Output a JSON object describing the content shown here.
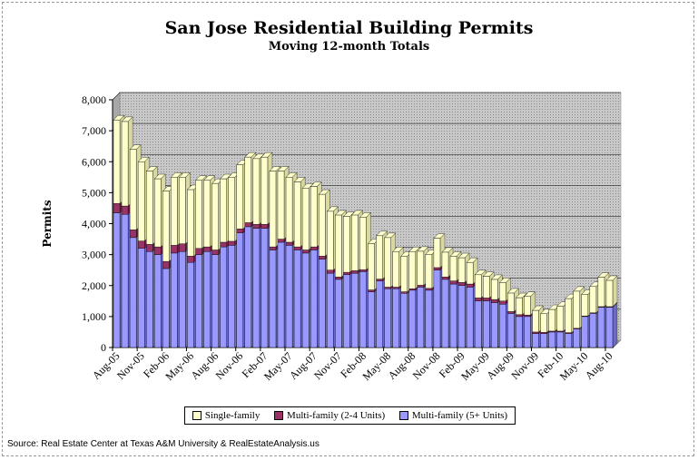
{
  "title": "San Jose Residential Building Permits",
  "subtitle": "Moving 12-month Totals",
  "source": "Source: Real Estate Center at Texas A&M University & RealEstateAnalysis.us",
  "chart_data": {
    "type": "bar",
    "stacked": true,
    "title": "San Jose Residential Building Permits",
    "subtitle": "Moving 12-month Totals",
    "xlabel": "",
    "ylabel": "Permits",
    "ylim": [
      0,
      8000
    ],
    "yticks": [
      "0",
      "1,000",
      "2,000",
      "3,000",
      "4,000",
      "5,000",
      "6,000",
      "7,000",
      "8,000"
    ],
    "xtick_labels": [
      "Aug-05",
      "Nov-05",
      "Feb-06",
      "May-06",
      "Aug-06",
      "Nov-06",
      "Feb-07",
      "May-07",
      "Aug-07",
      "Nov-07",
      "Feb-08",
      "May-08",
      "Aug-08",
      "Nov-08",
      "Feb-09",
      "May-09",
      "Aug-09",
      "Nov-09",
      "Feb-10",
      "May-10",
      "Aug-10"
    ],
    "grid": true,
    "legend_position": "bottom",
    "colors": {
      "multi5": "#9999ff",
      "multi24": "#993366",
      "single": "#ffffcc",
      "plot_bg": "#c0c0c0"
    },
    "categories": [
      "Aug-05",
      "Sep-05",
      "Oct-05",
      "Nov-05",
      "Dec-05",
      "Jan-06",
      "Feb-06",
      "Mar-06",
      "Apr-06",
      "May-06",
      "Jun-06",
      "Jul-06",
      "Aug-06",
      "Sep-06",
      "Oct-06",
      "Nov-06",
      "Dec-06",
      "Jan-07",
      "Feb-07",
      "Mar-07",
      "Apr-07",
      "May-07",
      "Jun-07",
      "Jul-07",
      "Aug-07",
      "Sep-07",
      "Oct-07",
      "Nov-07",
      "Dec-07",
      "Jan-08",
      "Feb-08",
      "Mar-08",
      "Apr-08",
      "May-08",
      "Jun-08",
      "Jul-08",
      "Aug-08",
      "Sep-08",
      "Oct-08",
      "Nov-08",
      "Dec-08",
      "Jan-09",
      "Feb-09",
      "Mar-09",
      "Apr-09",
      "May-09",
      "Jun-09",
      "Jul-09",
      "Aug-09",
      "Sep-09",
      "Oct-09",
      "Nov-09",
      "Dec-09",
      "Jan-10",
      "Feb-10",
      "Mar-10",
      "Apr-10",
      "May-10",
      "Jun-10",
      "Jul-10",
      "Aug-10"
    ],
    "series": [
      {
        "name": "Multi-family (5+ Units)",
        "values": [
          4350,
          4300,
          3550,
          3200,
          3100,
          3000,
          2550,
          3050,
          3100,
          2750,
          3000,
          3100,
          3000,
          3250,
          3300,
          3700,
          3900,
          3850,
          3850,
          3150,
          3400,
          3300,
          3150,
          3050,
          3150,
          2850,
          2400,
          2200,
          2350,
          2400,
          2450,
          1800,
          2150,
          1900,
          1900,
          1750,
          1850,
          1950,
          1850,
          2500,
          2200,
          2050,
          2000,
          1950,
          1500,
          1500,
          1450,
          1400,
          1100,
          1000,
          1000,
          450,
          450,
          500,
          500,
          450,
          600,
          1000,
          1100,
          1300,
          1300
        ]
      },
      {
        "name": "Multi-family (2-4 Units)",
        "values": [
          300,
          270,
          250,
          240,
          230,
          250,
          230,
          250,
          250,
          200,
          200,
          150,
          150,
          150,
          130,
          130,
          130,
          130,
          130,
          100,
          100,
          100,
          100,
          100,
          100,
          100,
          100,
          80,
          80,
          80,
          60,
          60,
          60,
          50,
          50,
          50,
          50,
          60,
          60,
          80,
          80,
          100,
          100,
          100,
          100,
          100,
          100,
          100,
          60,
          60,
          50,
          50,
          40,
          30,
          30,
          30,
          20,
          20,
          20,
          20,
          20
        ]
      },
      {
        "name": "Single-family",
        "values": [
          2700,
          2730,
          2600,
          2560,
          2370,
          2200,
          2270,
          2200,
          2150,
          2150,
          2200,
          2150,
          2150,
          2050,
          2070,
          2070,
          2120,
          2120,
          2170,
          2450,
          2200,
          2100,
          2100,
          2000,
          1950,
          2000,
          1900,
          2000,
          1800,
          1800,
          1700,
          1500,
          1400,
          1600,
          1150,
          1150,
          1200,
          1100,
          1100,
          950,
          800,
          800,
          800,
          700,
          750,
          700,
          650,
          600,
          600,
          550,
          600,
          700,
          600,
          700,
          800,
          1100,
          1200,
          700,
          850,
          950,
          850
        ]
      }
    ]
  }
}
